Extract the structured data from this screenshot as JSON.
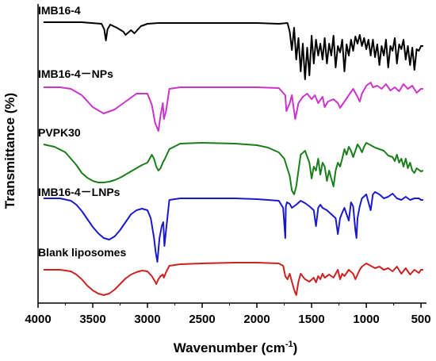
{
  "chart_data": {
    "type": "line",
    "title": "",
    "xlabel": "Wavenumber",
    "xlabel_unit_prefix": "(cm",
    "xlabel_unit_sup": "-1",
    "xlabel_unit_suffix": ")",
    "ylabel": "Transmittance (%)",
    "xlim": [
      4000,
      450
    ],
    "x_reversed": true,
    "x_ticks": [
      4000,
      3500,
      3000,
      2500,
      2000,
      1500,
      1000,
      500
    ],
    "y_ticks_shown": false,
    "grid": false,
    "legend": "inline labels above each curve",
    "series": [
      {
        "name": "IMB16-4",
        "color": "#000000",
        "x": [
          3950,
          3600,
          3420,
          3395,
          3380,
          3365,
          3340,
          3280,
          3220,
          3200,
          3150,
          3120,
          3060,
          3000,
          2900,
          2700,
          2500,
          2000,
          1800,
          1720,
          1700,
          1680,
          1660,
          1640,
          1620,
          1600,
          1580,
          1560,
          1540,
          1520,
          1500,
          1480,
          1460,
          1440,
          1420,
          1400,
          1380,
          1360,
          1340,
          1320,
          1300,
          1280,
          1260,
          1240,
          1220,
          1200,
          1180,
          1160,
          1140,
          1120,
          1100,
          1080,
          1060,
          1040,
          1020,
          1000,
          980,
          960,
          940,
          920,
          900,
          880,
          860,
          840,
          820,
          800,
          780,
          760,
          740,
          720,
          700,
          680,
          660,
          640,
          620,
          600,
          580,
          560,
          540,
          520,
          500,
          480
        ],
        "y": [
          28,
          28,
          30,
          37,
          51,
          37,
          31,
          35,
          40,
          44,
          38,
          42,
          33,
          30,
          29,
          29,
          29,
          29,
          30,
          29,
          40,
          63,
          35,
          75,
          48,
          90,
          55,
          100,
          60,
          95,
          45,
          80,
          50,
          70,
          55,
          75,
          48,
          80,
          55,
          70,
          45,
          85,
          58,
          66,
          50,
          90,
          56,
          70,
          50,
          64,
          46,
          55,
          44,
          58,
          48,
          62,
          50,
          70,
          50,
          72,
          56,
          82,
          58,
          70,
          50,
          85,
          58,
          64,
          48,
          80,
          56,
          62,
          50,
          75,
          58,
          82,
          60,
          88,
          62,
          64,
          58,
          58
        ]
      },
      {
        "name": "IMB16-4－NPs",
        "color": "#cc33cc",
        "x": [
          3950,
          3800,
          3700,
          3600,
          3500,
          3400,
          3300,
          3200,
          3100,
          3000,
          2960,
          2930,
          2900,
          2880,
          2860,
          2850,
          2830,
          2800,
          2700,
          2500,
          2000,
          1800,
          1740,
          1730,
          1700,
          1680,
          1650,
          1620,
          1580,
          1540,
          1500,
          1470,
          1440,
          1400,
          1380,
          1350,
          1300,
          1260,
          1240,
          1200,
          1160,
          1120,
          1080,
          1060,
          1040,
          1000,
          960,
          940,
          900,
          860,
          820,
          780,
          740,
          700,
          660,
          620,
          580,
          540,
          500,
          480
        ],
        "y": [
          110,
          110,
          112,
          120,
          135,
          143,
          138,
          128,
          118,
          118,
          132,
          155,
          165,
          145,
          130,
          150,
          140,
          112,
          110,
          110,
          110,
          111,
          120,
          140,
          130,
          120,
          150,
          130,
          122,
          118,
          125,
          120,
          130,
          122,
          135,
          128,
          125,
          130,
          136,
          128,
          120,
          112,
          122,
          128,
          118,
          108,
          104,
          110,
          108,
          112,
          106,
          114,
          110,
          115,
          106,
          112,
          108,
          117,
          112,
          112
        ]
      },
      {
        "name": "PVPK30",
        "color": "#1a7f1a",
        "x": [
          3950,
          3850,
          3750,
          3700,
          3650,
          3600,
          3550,
          3500,
          3450,
          3400,
          3350,
          3300,
          3250,
          3200,
          3150,
          3100,
          3050,
          3000,
          2980,
          2960,
          2940,
          2920,
          2900,
          2880,
          2860,
          2840,
          2800,
          2700,
          2500,
          2200,
          2000,
          1900,
          1800,
          1750,
          1700,
          1680,
          1660,
          1640,
          1620,
          1600,
          1560,
          1520,
          1500,
          1480,
          1460,
          1440,
          1420,
          1400,
          1380,
          1360,
          1340,
          1320,
          1300,
          1280,
          1260,
          1240,
          1220,
          1200,
          1180,
          1160,
          1140,
          1120,
          1100,
          1080,
          1060,
          1040,
          1020,
          1000,
          960,
          920,
          880,
          840,
          800,
          760,
          740,
          720,
          700,
          680,
          660,
          640,
          620,
          600,
          580,
          560,
          540,
          520,
          500,
          480
        ],
        "y": [
          182,
          185,
          192,
          200,
          208,
          218,
          224,
          228,
          230,
          230,
          229,
          227,
          224,
          220,
          216,
          212,
          208,
          205,
          200,
          195,
          200,
          210,
          215,
          212,
          205,
          200,
          188,
          181,
          180,
          181,
          183,
          186,
          192,
          200,
          222,
          240,
          245,
          235,
          215,
          195,
          190,
          205,
          225,
          210,
          215,
          200,
          220,
          205,
          210,
          228,
          215,
          225,
          235,
          215,
          205,
          210,
          200,
          188,
          195,
          185,
          190,
          198,
          190,
          182,
          186,
          192,
          185,
          180,
          183,
          186,
          188,
          190,
          196,
          198,
          203,
          195,
          205,
          200,
          210,
          200,
          212,
          205,
          215,
          218,
          212,
          214,
          216,
          215
        ]
      },
      {
        "name": "IMB16-4－LNPs",
        "color": "#1a1acc",
        "x": [
          3950,
          3800,
          3700,
          3650,
          3600,
          3550,
          3500,
          3450,
          3400,
          3350,
          3300,
          3250,
          3200,
          3150,
          3100,
          3050,
          3000,
          2970,
          2940,
          2925,
          2910,
          2890,
          2870,
          2855,
          2845,
          2830,
          2800,
          2700,
          2500,
          2200,
          2000,
          1800,
          1760,
          1740,
          1735,
          1725,
          1700,
          1680,
          1640,
          1600,
          1560,
          1520,
          1480,
          1460,
          1440,
          1420,
          1400,
          1360,
          1320,
          1280,
          1260,
          1240,
          1220,
          1200,
          1180,
          1160,
          1140,
          1120,
          1100,
          1090,
          1080,
          1060,
          1040,
          1000,
          980,
          960,
          940,
          920,
          880,
          840,
          800,
          760,
          720,
          680,
          640,
          600,
          560,
          520,
          500,
          480
        ],
        "y": [
          250,
          250,
          253,
          258,
          266,
          276,
          286,
          294,
          300,
          302,
          298,
          290,
          280,
          270,
          265,
          263,
          265,
          275,
          300,
          318,
          330,
          300,
          285,
          280,
          310,
          290,
          252,
          250,
          250,
          250,
          251,
          253,
          262,
          300,
          260,
          255,
          257,
          262,
          258,
          253,
          256,
          260,
          265,
          285,
          262,
          258,
          262,
          265,
          270,
          275,
          295,
          275,
          268,
          262,
          270,
          278,
          255,
          260,
          290,
          300,
          275,
          260,
          250,
          245,
          255,
          265,
          245,
          242,
          245,
          250,
          248,
          244,
          250,
          252,
          248,
          252,
          250,
          250,
          252,
          252
        ]
      },
      {
        "name": "Blank liposomes",
        "color": "#cc2222",
        "x": [
          3950,
          3800,
          3700,
          3650,
          3600,
          3550,
          3500,
          3450,
          3400,
          3350,
          3300,
          3250,
          3200,
          3150,
          3100,
          3050,
          3000,
          2960,
          2930,
          2920,
          2900,
          2880,
          2860,
          2850,
          2830,
          2800,
          2700,
          2500,
          2200,
          2000,
          1800,
          1760,
          1740,
          1720,
          1700,
          1680,
          1660,
          1640,
          1620,
          1600,
          1560,
          1520,
          1480,
          1460,
          1440,
          1420,
          1400,
          1380,
          1340,
          1300,
          1260,
          1240,
          1220,
          1200,
          1160,
          1120,
          1100,
          1080,
          1060,
          1040,
          1000,
          960,
          920,
          880,
          840,
          800,
          760,
          720,
          680,
          640,
          600,
          560,
          520,
          500,
          480
        ],
        "y": [
          340,
          340,
          342,
          346,
          352,
          360,
          366,
          370,
          372,
          370,
          365,
          358,
          351,
          346,
          343,
          341,
          342,
          348,
          355,
          358,
          352,
          348,
          346,
          350,
          343,
          335,
          333,
          332,
          331,
          331,
          332,
          335,
          348,
          352,
          345,
          355,
          365,
          372,
          355,
          345,
          352,
          355,
          350,
          356,
          348,
          352,
          345,
          350,
          346,
          350,
          340,
          352,
          345,
          348,
          340,
          345,
          352,
          346,
          340,
          336,
          332,
          335,
          338,
          336,
          340,
          338,
          342,
          336,
          345,
          338,
          346,
          340,
          344,
          340,
          340
        ]
      }
    ]
  }
}
